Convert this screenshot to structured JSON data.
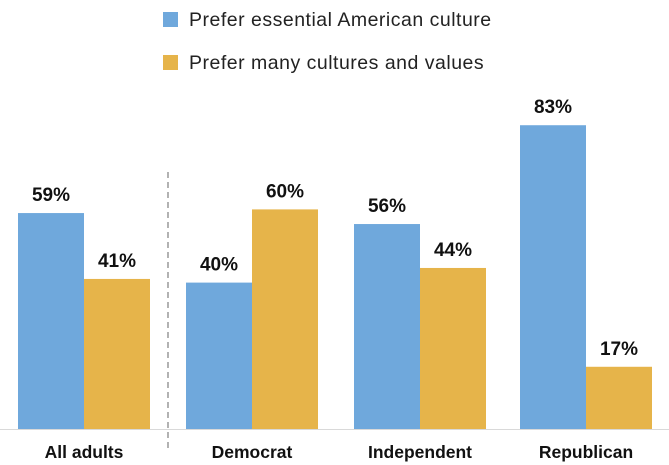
{
  "chart_data": {
    "type": "bar",
    "categories": [
      "All adults",
      "Democrat",
      "Independent",
      "Republican"
    ],
    "series": [
      {
        "name": "Prefer essential American culture",
        "values": [
          59,
          40,
          56,
          83
        ],
        "labels": [
          "59%",
          "40%",
          "56%",
          "83%"
        ],
        "color": "#6fa8dc"
      },
      {
        "name": "Prefer many cultures and values",
        "values": [
          41,
          60,
          44,
          17
        ],
        "labels": [
          "41%",
          "60%",
          "44%",
          "17%"
        ],
        "color": "#e6b44a"
      }
    ],
    "title": "",
    "xlabel": "",
    "ylabel": "",
    "ylim": [
      0,
      100
    ],
    "grid": false,
    "y_axis_shown": false,
    "legend_position": "top",
    "separator_after_category": "All adults"
  },
  "colors": {
    "label_text": "#111111",
    "baseline": "#d9d9d9",
    "separator": "#808080"
  }
}
